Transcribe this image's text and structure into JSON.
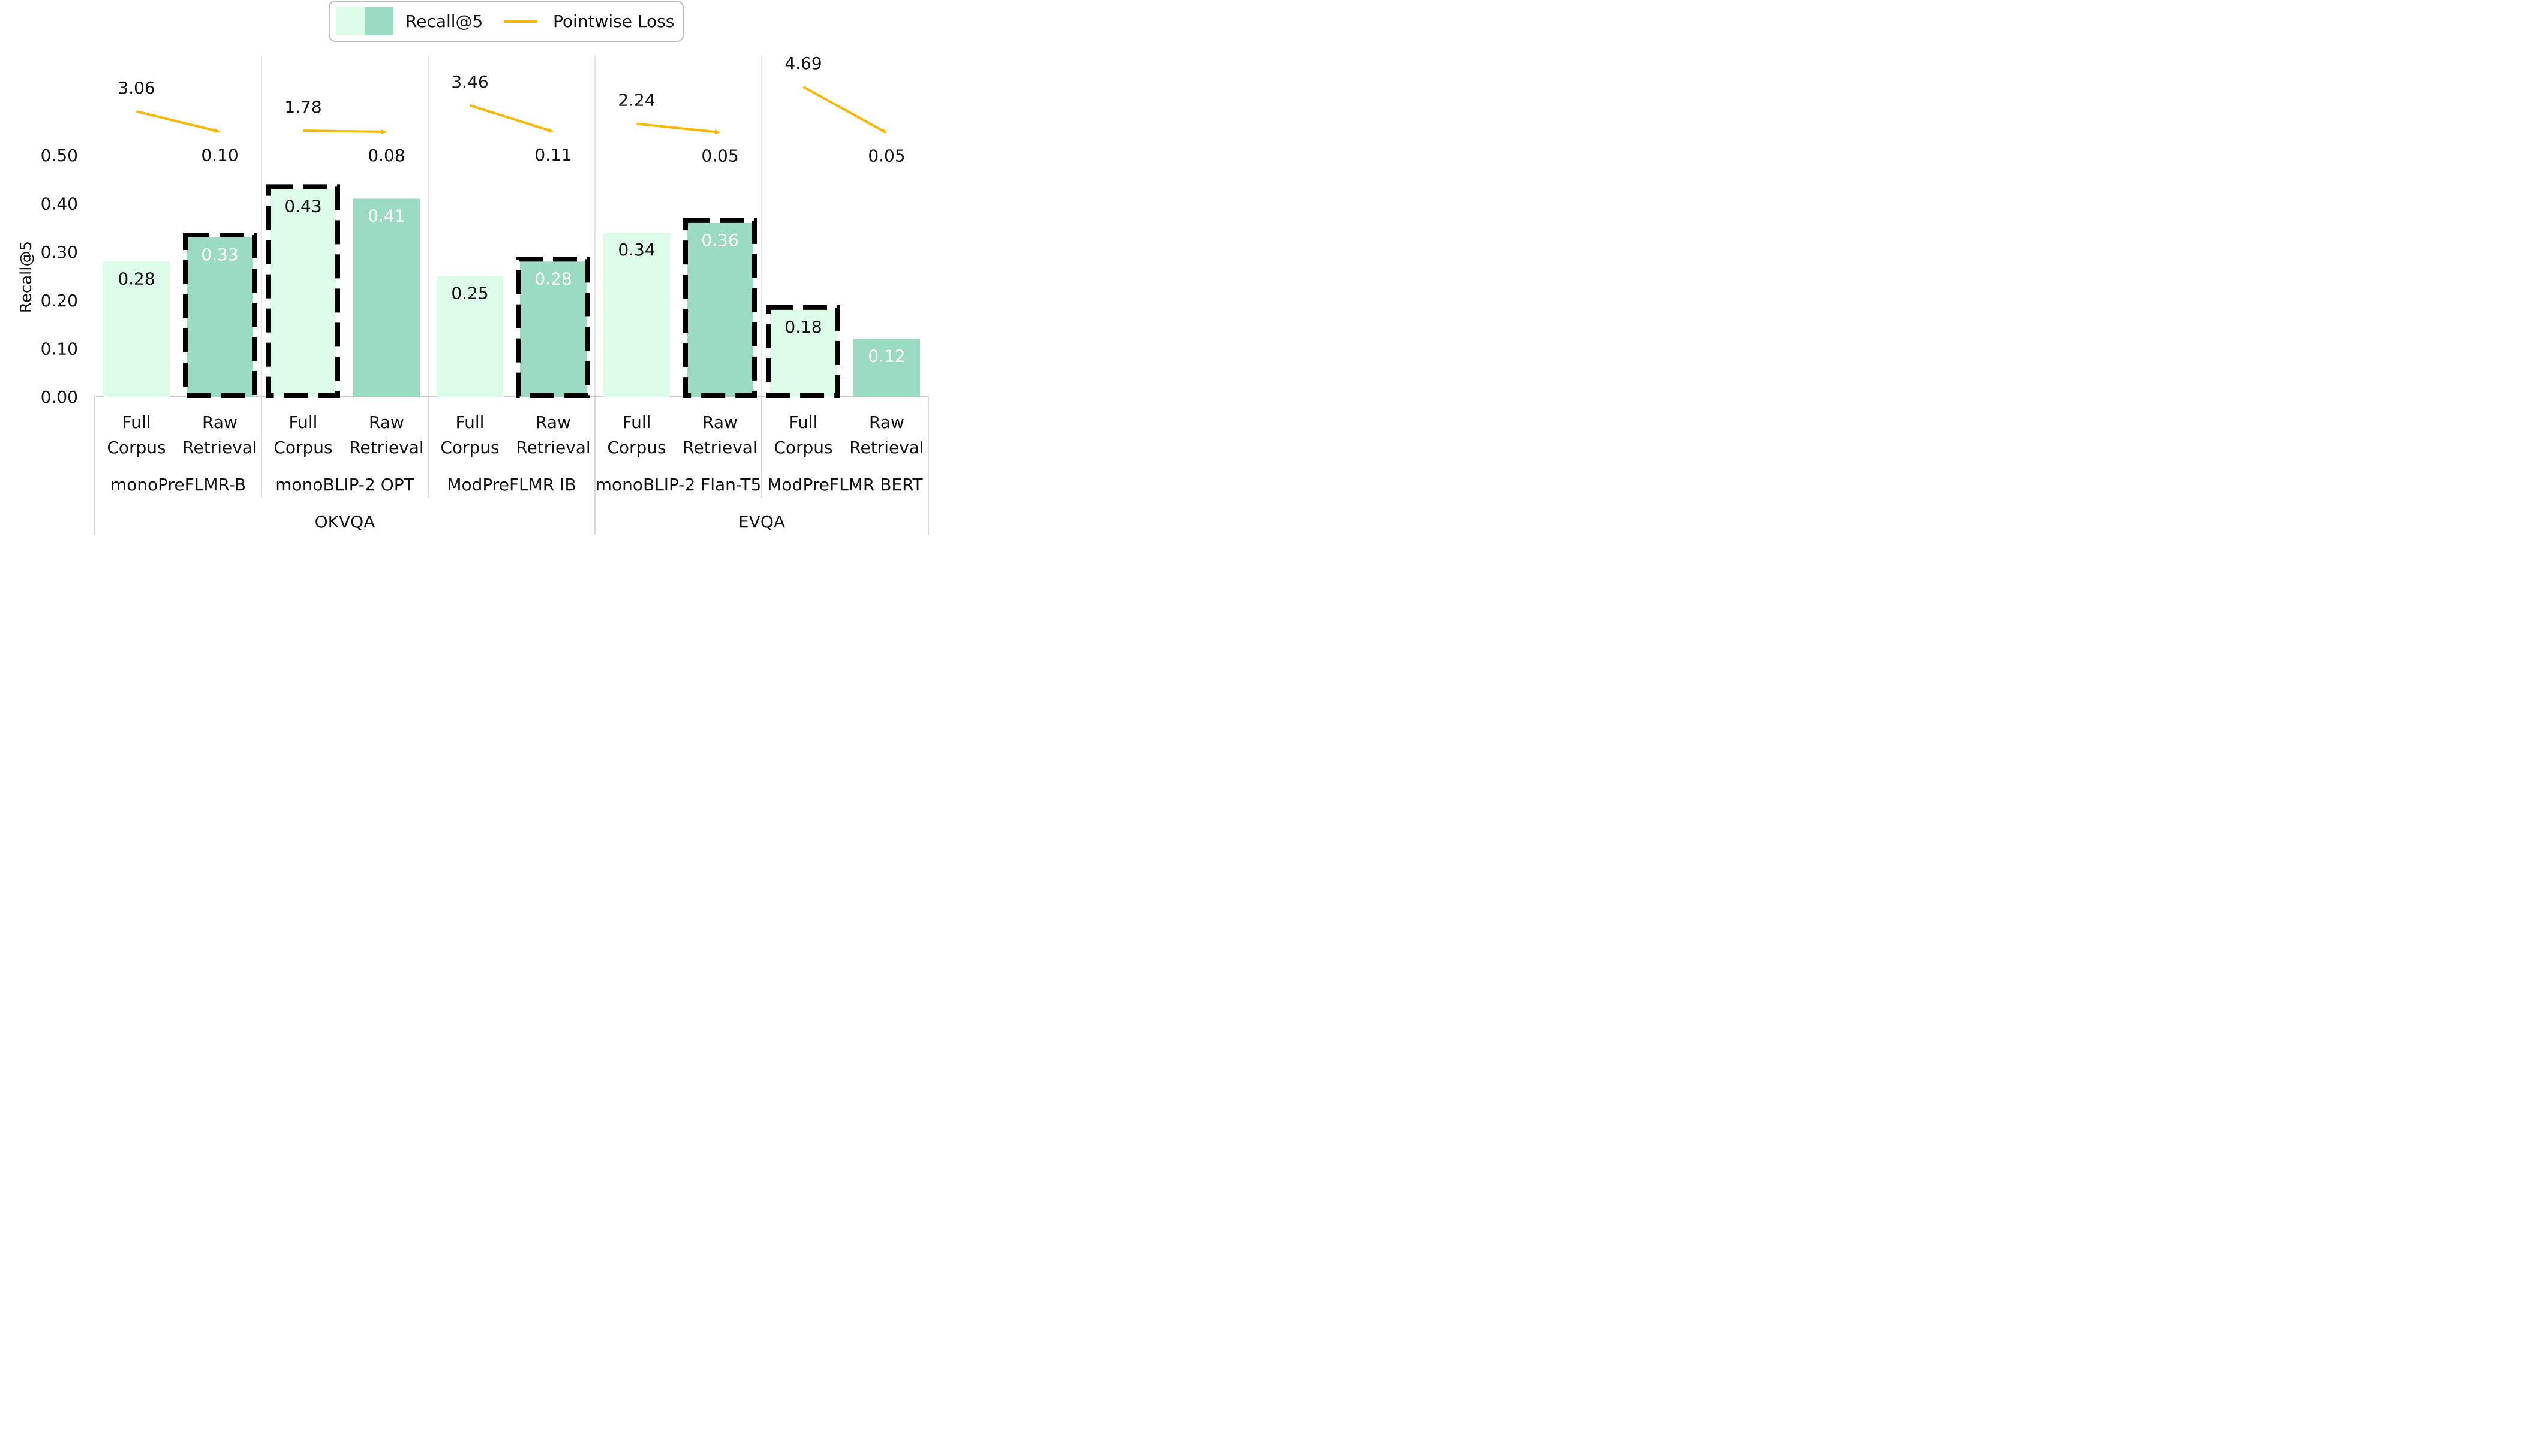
{
  "chart_data": {
    "type": "bar",
    "ylabel": "Recall@5",
    "ylim": [
      0,
      0.5
    ],
    "yticks": [
      "0.00",
      "0.10",
      "0.20",
      "0.30",
      "0.40",
      "0.50"
    ],
    "grid": false,
    "legend": {
      "position": "top-center",
      "entries": [
        "Recall@5",
        "Pointwise Loss"
      ]
    },
    "colors": {
      "full_corpus": "#dcfbe9",
      "raw_retrieval": "#9adbc2",
      "loss_arrow": "#f7b900",
      "highlight_border": "#000000"
    },
    "bar_categories": [
      [
        "Full",
        "Corpus"
      ],
      [
        "Raw",
        "Retrieval"
      ]
    ],
    "datasets": [
      {
        "name": "OKVQA",
        "models": [
          "monoPreFLMR-B",
          "monoBLIP-2 OPT",
          "ModPreFLMR IB"
        ]
      },
      {
        "name": "EVQA",
        "models": [
          "monoBLIP-2 Flan-T5",
          "ModPreFLMR BERT"
        ]
      }
    ],
    "groups": [
      {
        "dataset": "OKVQA",
        "model": "monoPreFLMR-B",
        "recall5": {
          "full_corpus": 0.28,
          "raw_retrieval": 0.33
        },
        "recall5_labels": {
          "full_corpus": "0.28",
          "raw_retrieval": "0.33"
        },
        "pointwise_loss": {
          "full_corpus": 3.06,
          "raw_retrieval": 0.1
        },
        "loss_labels": {
          "full_corpus": "3.06",
          "raw_retrieval": "0.10"
        },
        "highlighted": [
          "raw_retrieval"
        ]
      },
      {
        "dataset": "OKVQA",
        "model": "monoBLIP-2 OPT",
        "recall5": {
          "full_corpus": 0.43,
          "raw_retrieval": 0.41
        },
        "recall5_labels": {
          "full_corpus": "0.43",
          "raw_retrieval": "0.41"
        },
        "pointwise_loss": {
          "full_corpus": 1.78,
          "raw_retrieval": 0.08
        },
        "loss_labels": {
          "full_corpus": "1.78",
          "raw_retrieval": "0.08"
        },
        "highlighted": [
          "full_corpus"
        ]
      },
      {
        "dataset": "OKVQA",
        "model": "ModPreFLMR IB",
        "recall5": {
          "full_corpus": 0.25,
          "raw_retrieval": 0.28
        },
        "recall5_labels": {
          "full_corpus": "0.25",
          "raw_retrieval": "0.28"
        },
        "pointwise_loss": {
          "full_corpus": 3.46,
          "raw_retrieval": 0.11
        },
        "loss_labels": {
          "full_corpus": "3.46",
          "raw_retrieval": "0.11"
        },
        "highlighted": [
          "raw_retrieval"
        ]
      },
      {
        "dataset": "EVQA",
        "model": "monoBLIP-2 Flan-T5",
        "recall5": {
          "full_corpus": 0.34,
          "raw_retrieval": 0.36
        },
        "recall5_labels": {
          "full_corpus": "0.34",
          "raw_retrieval": "0.36"
        },
        "pointwise_loss": {
          "full_corpus": 2.24,
          "raw_retrieval": 0.05
        },
        "loss_labels": {
          "full_corpus": "2.24",
          "raw_retrieval": "0.05"
        },
        "highlighted": [
          "raw_retrieval"
        ]
      },
      {
        "dataset": "EVQA",
        "model": "ModPreFLMR BERT",
        "recall5": {
          "full_corpus": 0.18,
          "raw_retrieval": 0.12
        },
        "recall5_labels": {
          "full_corpus": "0.18",
          "raw_retrieval": "0.12"
        },
        "pointwise_loss": {
          "full_corpus": 4.69,
          "raw_retrieval": 0.05
        },
        "loss_labels": {
          "full_corpus": "4.69",
          "raw_retrieval": "0.05"
        },
        "highlighted": [
          "full_corpus"
        ]
      }
    ]
  }
}
